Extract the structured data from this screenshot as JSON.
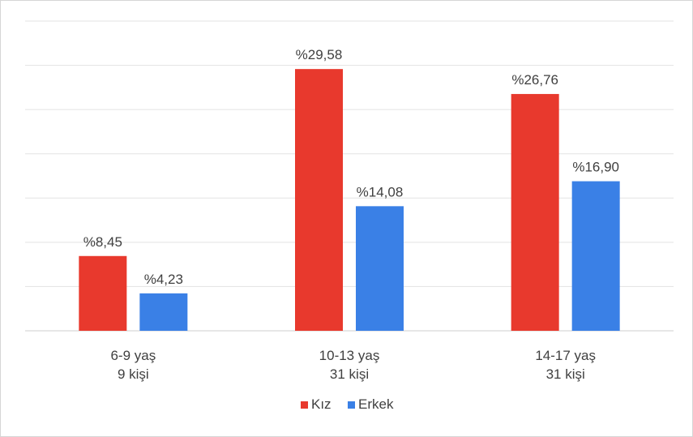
{
  "chart_data": {
    "type": "bar",
    "title": "",
    "xlabel": "",
    "ylabel": "",
    "categories": [
      {
        "line1": "6-9 yaş",
        "line2": "9 kişi"
      },
      {
        "line1": "10-13 yaş",
        "line2": "31 kişi"
      },
      {
        "line1": "14-17 yaş",
        "line2": "31 kişi"
      }
    ],
    "series": [
      {
        "name": "Kız",
        "color": "#e8392d",
        "values": [
          8.45,
          29.58,
          26.76
        ],
        "labels": [
          "%8,45",
          "%29,58",
          "%26,76"
        ]
      },
      {
        "name": "Erkek",
        "color": "#3a80e6",
        "values": [
          4.23,
          14.08,
          16.9
        ],
        "labels": [
          "%4,23",
          "%14,08",
          "%16,90"
        ]
      }
    ],
    "ylim": [
      0,
      35
    ],
    "grid": true,
    "legend_position": "bottom"
  }
}
